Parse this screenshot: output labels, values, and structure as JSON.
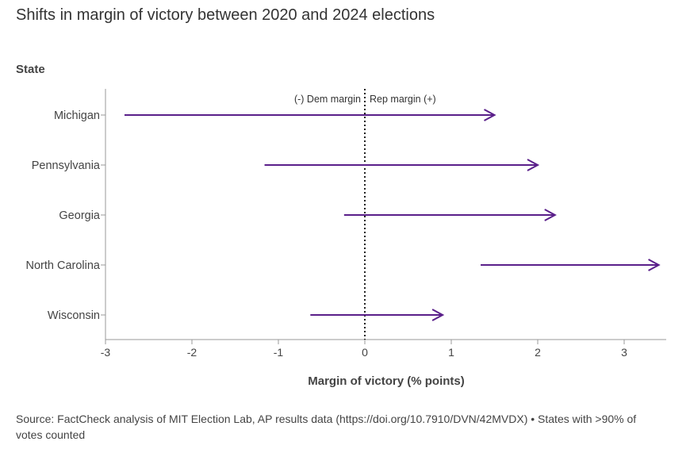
{
  "title": "Shifts in margin of victory between 2020 and 2024 elections",
  "source": "Source: FactCheck analysis of MIT Election Lab, AP results data (https://doi.org/10.7910/DVN/42MVDX) • States with >90% of votes counted",
  "colors": {
    "arrow": "#5a1f8a",
    "axis": "#999999",
    "zero_line": "#222222"
  },
  "chart_data": {
    "type": "arrow",
    "y_axis_title": "State",
    "x_axis_title": "Margin of victory (% points)",
    "xlim": [
      -3,
      3.5
    ],
    "x_ticks": [
      -3,
      -2,
      -1,
      0,
      1,
      2,
      3
    ],
    "x_tick_labels": [
      "-3",
      "-2",
      "-1",
      "0",
      "1",
      "2",
      "3"
    ],
    "annotation_left": "(-) Dem margin",
    "annotation_right": "Rep margin (+)",
    "grid": false,
    "states": [
      "Michigan",
      "Pennsylvania",
      "Georgia",
      "North Carolina",
      "Wisconsin"
    ],
    "margin_2020": [
      -2.78,
      -1.16,
      -0.24,
      1.34,
      -0.63
    ],
    "margin_2024": [
      1.5,
      2.0,
      2.2,
      3.4,
      0.9
    ]
  }
}
